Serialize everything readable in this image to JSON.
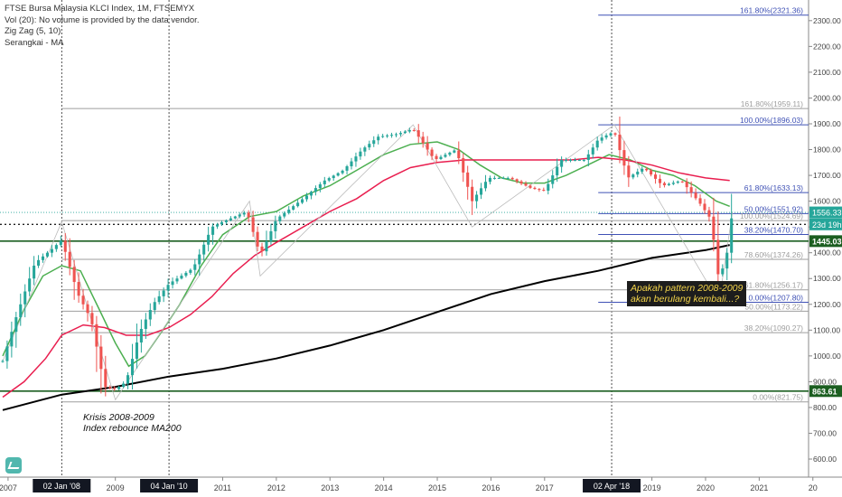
{
  "chart_data": {
    "type": "candlestick",
    "title": "FTSE Bursa Malaysia KLCI Index, 1M, FTSEMYX",
    "legend_lines": [
      "FTSE Bursa Malaysia KLCI Index, 1M, FTSEMYX",
      "Vol (20): No volume is provided by the data vendor.",
      "Zig Zag (5, 10)",
      "Serangkai - MA"
    ],
    "y_axis": {
      "ticks": [
        600,
        700,
        800,
        900,
        1000,
        1100,
        1200,
        1300,
        1400,
        1500,
        1600,
        1700,
        1800,
        1900,
        2000,
        2100,
        2200,
        2300
      ],
      "tick_labels": [
        "600.00",
        "700.00",
        "800.00",
        "900.00",
        "1000.00",
        "1100.00",
        "1200.00",
        "1300.00",
        "1400.00",
        "1500.00",
        "1600.00",
        "1700.00",
        "1800.00",
        "1900.00",
        "2000.00",
        "2100.00",
        "2200.00",
        "2300.00"
      ],
      "range": [
        530,
        2380
      ],
      "position": "right"
    },
    "x_axis": {
      "range": [
        2006.85,
        2021.92
      ],
      "ticks": [
        {
          "t": 2007.0,
          "label": "2007"
        },
        {
          "t": 2008.0,
          "label": "02 Jan '08",
          "highlight": true
        },
        {
          "t": 2009.0,
          "label": "2009"
        },
        {
          "t": 2010.0,
          "label": "04 Jan '10",
          "highlight": true
        },
        {
          "t": 2011.0,
          "label": "2011"
        },
        {
          "t": 2012.0,
          "label": "2012"
        },
        {
          "t": 2013.0,
          "label": "2013"
        },
        {
          "t": 2014.0,
          "label": "2014"
        },
        {
          "t": 2015.0,
          "label": "2015"
        },
        {
          "t": 2016.0,
          "label": "2016"
        },
        {
          "t": 2017.0,
          "label": "2017"
        },
        {
          "t": 2018.25,
          "label": "02 Apr '18",
          "highlight": true
        },
        {
          "t": 2019.0,
          "label": "2019"
        },
        {
          "t": 2020.0,
          "label": "2020"
        },
        {
          "t": 2021.0,
          "label": "2021"
        },
        {
          "t": 2022.0,
          "label": "20"
        }
      ]
    },
    "vertical_markers": [
      2008.0,
      2010.0,
      2018.25
    ],
    "colors": {
      "up": "#26a69a",
      "down": "#ef5350",
      "ma_fast": "#4caf50",
      "ma_mid": "#e91e4f",
      "ma_long": "#000000",
      "fib_blue": "#3f51b5",
      "fib_grey": "#9e9e9e"
    },
    "price_anchors": [
      [
        2006.9,
        980
      ],
      [
        2007.15,
        1150
      ],
      [
        2007.5,
        1360
      ],
      [
        2007.85,
        1420
      ],
      [
        2008.0,
        1450
      ],
      [
        2008.3,
        1240
      ],
      [
        2008.55,
        1140
      ],
      [
        2008.8,
        880
      ],
      [
        2009.0,
        870
      ],
      [
        2009.2,
        900
      ],
      [
        2009.45,
        1090
      ],
      [
        2009.7,
        1200
      ],
      [
        2010.0,
        1280
      ],
      [
        2010.45,
        1340
      ],
      [
        2010.8,
        1500
      ],
      [
        2011.0,
        1520
      ],
      [
        2011.45,
        1560
      ],
      [
        2011.7,
        1390
      ],
      [
        2012.0,
        1530
      ],
      [
        2012.5,
        1610
      ],
      [
        2012.9,
        1680
      ],
      [
        2013.25,
        1720
      ],
      [
        2013.6,
        1800
      ],
      [
        2013.9,
        1850
      ],
      [
        2014.25,
        1860
      ],
      [
        2014.55,
        1880
      ],
      [
        2014.95,
        1760
      ],
      [
        2015.35,
        1800
      ],
      [
        2015.65,
        1600
      ],
      [
        2015.95,
        1690
      ],
      [
        2016.35,
        1690
      ],
      [
        2016.75,
        1650
      ],
      [
        2017.0,
        1640
      ],
      [
        2017.3,
        1760
      ],
      [
        2017.75,
        1760
      ],
      [
        2018.0,
        1840
      ],
      [
        2018.3,
        1870
      ],
      [
        2018.55,
        1690
      ],
      [
        2018.85,
        1730
      ],
      [
        2019.2,
        1660
      ],
      [
        2019.55,
        1680
      ],
      [
        2019.9,
        1590
      ],
      [
        2020.1,
        1530
      ],
      [
        2020.25,
        1290
      ],
      [
        2020.4,
        1400
      ],
      [
        2020.5,
        1560
      ]
    ],
    "moving_averages": [
      {
        "color": "#4caf50",
        "points": [
          [
            2006.9,
            1000
          ],
          [
            2007.3,
            1180
          ],
          [
            2007.65,
            1310
          ],
          [
            2008.0,
            1350
          ],
          [
            2008.35,
            1330
          ],
          [
            2008.7,
            1180
          ],
          [
            2009.0,
            1050
          ],
          [
            2009.25,
            960
          ],
          [
            2009.55,
            1000
          ],
          [
            2009.85,
            1090
          ],
          [
            2010.2,
            1200
          ],
          [
            2010.6,
            1350
          ],
          [
            2011.0,
            1470
          ],
          [
            2011.5,
            1540
          ],
          [
            2012.0,
            1560
          ],
          [
            2012.5,
            1620
          ],
          [
            2013.0,
            1660
          ],
          [
            2013.5,
            1720
          ],
          [
            2014.0,
            1780
          ],
          [
            2014.5,
            1820
          ],
          [
            2015.0,
            1830
          ],
          [
            2015.4,
            1800
          ],
          [
            2015.8,
            1740
          ],
          [
            2016.2,
            1690
          ],
          [
            2016.6,
            1670
          ],
          [
            2017.0,
            1670
          ],
          [
            2017.4,
            1700
          ],
          [
            2017.8,
            1740
          ],
          [
            2018.2,
            1780
          ],
          [
            2018.6,
            1760
          ],
          [
            2019.0,
            1720
          ],
          [
            2019.4,
            1700
          ],
          [
            2019.8,
            1660
          ],
          [
            2020.2,
            1600
          ],
          [
            2020.45,
            1580
          ]
        ]
      },
      {
        "color": "#e91e4f",
        "points": [
          [
            2006.9,
            840
          ],
          [
            2007.3,
            900
          ],
          [
            2007.7,
            990
          ],
          [
            2008.0,
            1080
          ],
          [
            2008.4,
            1120
          ],
          [
            2008.8,
            1110
          ],
          [
            2009.2,
            1080
          ],
          [
            2009.6,
            1080
          ],
          [
            2010.0,
            1110
          ],
          [
            2010.4,
            1160
          ],
          [
            2010.8,
            1230
          ],
          [
            2011.2,
            1320
          ],
          [
            2011.6,
            1390
          ],
          [
            2012.0,
            1440
          ],
          [
            2012.5,
            1500
          ],
          [
            2013.0,
            1560
          ],
          [
            2013.5,
            1610
          ],
          [
            2014.0,
            1680
          ],
          [
            2014.5,
            1730
          ],
          [
            2015.0,
            1750
          ],
          [
            2015.5,
            1760
          ],
          [
            2016.0,
            1760
          ],
          [
            2016.5,
            1760
          ],
          [
            2017.0,
            1760
          ],
          [
            2017.5,
            1760
          ],
          [
            2018.0,
            1770
          ],
          [
            2018.5,
            1760
          ],
          [
            2019.0,
            1740
          ],
          [
            2019.5,
            1710
          ],
          [
            2020.0,
            1690
          ],
          [
            2020.45,
            1680
          ]
        ]
      },
      {
        "color": "#000000",
        "points": [
          [
            2006.9,
            790
          ],
          [
            2008.0,
            850
          ],
          [
            2009.0,
            880
          ],
          [
            2010.0,
            920
          ],
          [
            2011.0,
            950
          ],
          [
            2012.0,
            990
          ],
          [
            2013.0,
            1040
          ],
          [
            2014.0,
            1100
          ],
          [
            2015.0,
            1170
          ],
          [
            2016.0,
            1240
          ],
          [
            2017.0,
            1290
          ],
          [
            2018.0,
            1330
          ],
          [
            2019.0,
            1380
          ],
          [
            2020.0,
            1410
          ],
          [
            2020.45,
            1430
          ]
        ]
      }
    ],
    "zigzag": [
      [
        2006.9,
        980
      ],
      [
        2008.0,
        1520
      ],
      [
        2009.0,
        830
      ],
      [
        2011.5,
        1600
      ],
      [
        2011.7,
        1310
      ],
      [
        2014.55,
        1896
      ],
      [
        2015.65,
        1500
      ],
      [
        2018.3,
        1896
      ],
      [
        2020.25,
        1207.8
      ],
      [
        2020.5,
        1556.33
      ]
    ],
    "fib_sets": [
      {
        "color": "#3f51b5",
        "x_start": 2018.0,
        "x_end": 2021.92,
        "levels": [
          {
            "price": 2321.36,
            "label": "161.80%(2321.36)"
          },
          {
            "price": 1896.03,
            "label": "100.00%(1896.03)"
          },
          {
            "price": 1633.13,
            "label": "61.80%(1633.13)"
          },
          {
            "price": 1551.92,
            "label": "50.00%(1551.92)"
          },
          {
            "price": 1470.7,
            "label": "38.20%(1470.70)"
          },
          {
            "price": 1207.8,
            "label": "0.00%(1207.80)"
          }
        ]
      },
      {
        "color": "#9e9e9e",
        "x_start": 2008.0,
        "x_end": 2021.92,
        "levels": [
          {
            "price": 1959.11,
            "label": "161.80%(1959.11)"
          },
          {
            "price": 1524.69,
            "label": "100.00%(1524.69)"
          },
          {
            "price": 1374.26,
            "label": "78.60%(1374.26)"
          },
          {
            "price": 1256.17,
            "label": "61.80%(1256.17)"
          },
          {
            "price": 1173.22,
            "label": "50.00%(1173.22)"
          },
          {
            "price": 1090.27,
            "label": "38.20%(1090.27)"
          },
          {
            "price": 821.75,
            "label": "0.00%(821.75)"
          }
        ]
      }
    ],
    "horizontal_levels": [
      {
        "price": 1445.03,
        "label": "1445.03",
        "color": "#1b5e20"
      },
      {
        "price": 863.61,
        "label": "863.61",
        "color": "#1b5e20"
      }
    ],
    "price_labels": [
      {
        "price": 1556.33,
        "label": "1556.33",
        "color": "#26a69a"
      },
      {
        "price": 1510,
        "label": "23d 19h",
        "color": "#26a69a"
      }
    ],
    "annotations": {
      "krisis_line1": "Krisis 2008-2009",
      "krisis_line2": "Index rebounce MA200",
      "note_line1": "Apakah pattern 2008-2009",
      "note_line2": "akan berulang kembali...?"
    }
  }
}
